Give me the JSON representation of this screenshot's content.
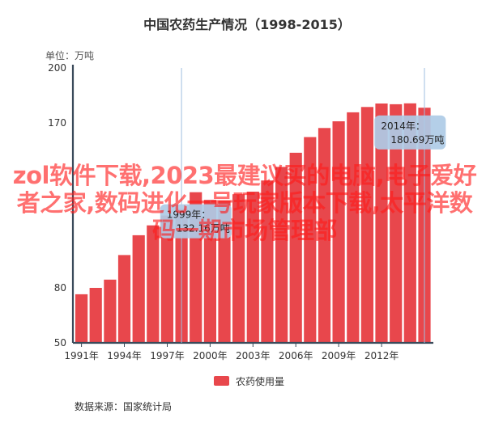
{
  "chart_data": {
    "type": "bar",
    "title": "中国农药生产情况（1998-2015）",
    "unit_label": "单位：万吨",
    "series": [
      {
        "name": "农药使用量",
        "color": "#e8474c",
        "x": [
          1991,
          1992,
          1993,
          1994,
          1995,
          1996,
          1997,
          1998,
          1999,
          2000,
          2001,
          2002,
          2003,
          2004,
          2005,
          2006,
          2007,
          2008,
          2009,
          2010,
          2011,
          2012,
          2013,
          2014,
          2015
        ],
        "values": [
          76.5,
          80.0,
          84.5,
          97.9,
          108.7,
          114.1,
          119.5,
          123.2,
          132.2,
          128.0,
          127.5,
          131.1,
          132.5,
          138.6,
          146.0,
          153.7,
          162.3,
          167.2,
          170.9,
          175.8,
          178.7,
          180.6,
          180.2,
          180.69,
          178.3
        ]
      }
    ],
    "ylim": [
      50,
      200
    ],
    "y_ticks": [
      50,
      80,
      110,
      140,
      170,
      200
    ],
    "y_tick_labels": [
      "50",
      "80",
      "",
      "",
      "170",
      "200"
    ],
    "x_tick_labels": [
      "1991年",
      "1994年",
      "1997年",
      "2000年",
      "2003年",
      "2006年",
      "2009年",
      "2012年"
    ],
    "x_tick_years": [
      1991,
      1994,
      1997,
      2000,
      2003,
      2006,
      2009,
      2012
    ],
    "grid": false,
    "legend_position": "bottom-center",
    "tooltips": [
      {
        "year_label": "2014年：",
        "value_label": "180.69万吨",
        "year": 2014
      },
      {
        "year_label": "1999年：",
        "value_label": "132.16万吨",
        "year": 1999
      }
    ],
    "source": "数据来源：国家统计局"
  },
  "watermark": {
    "text": "zol软件下载,2023最建议买的电脑,电子爱好者之家,数码进化一号玩家版本下载,太平洋数码一期市场管理部"
  },
  "colors": {
    "bar": "#e8474c",
    "axis": "#3a4a5a",
    "text": "#333333",
    "tooltip_bg": "#aecbe6"
  }
}
